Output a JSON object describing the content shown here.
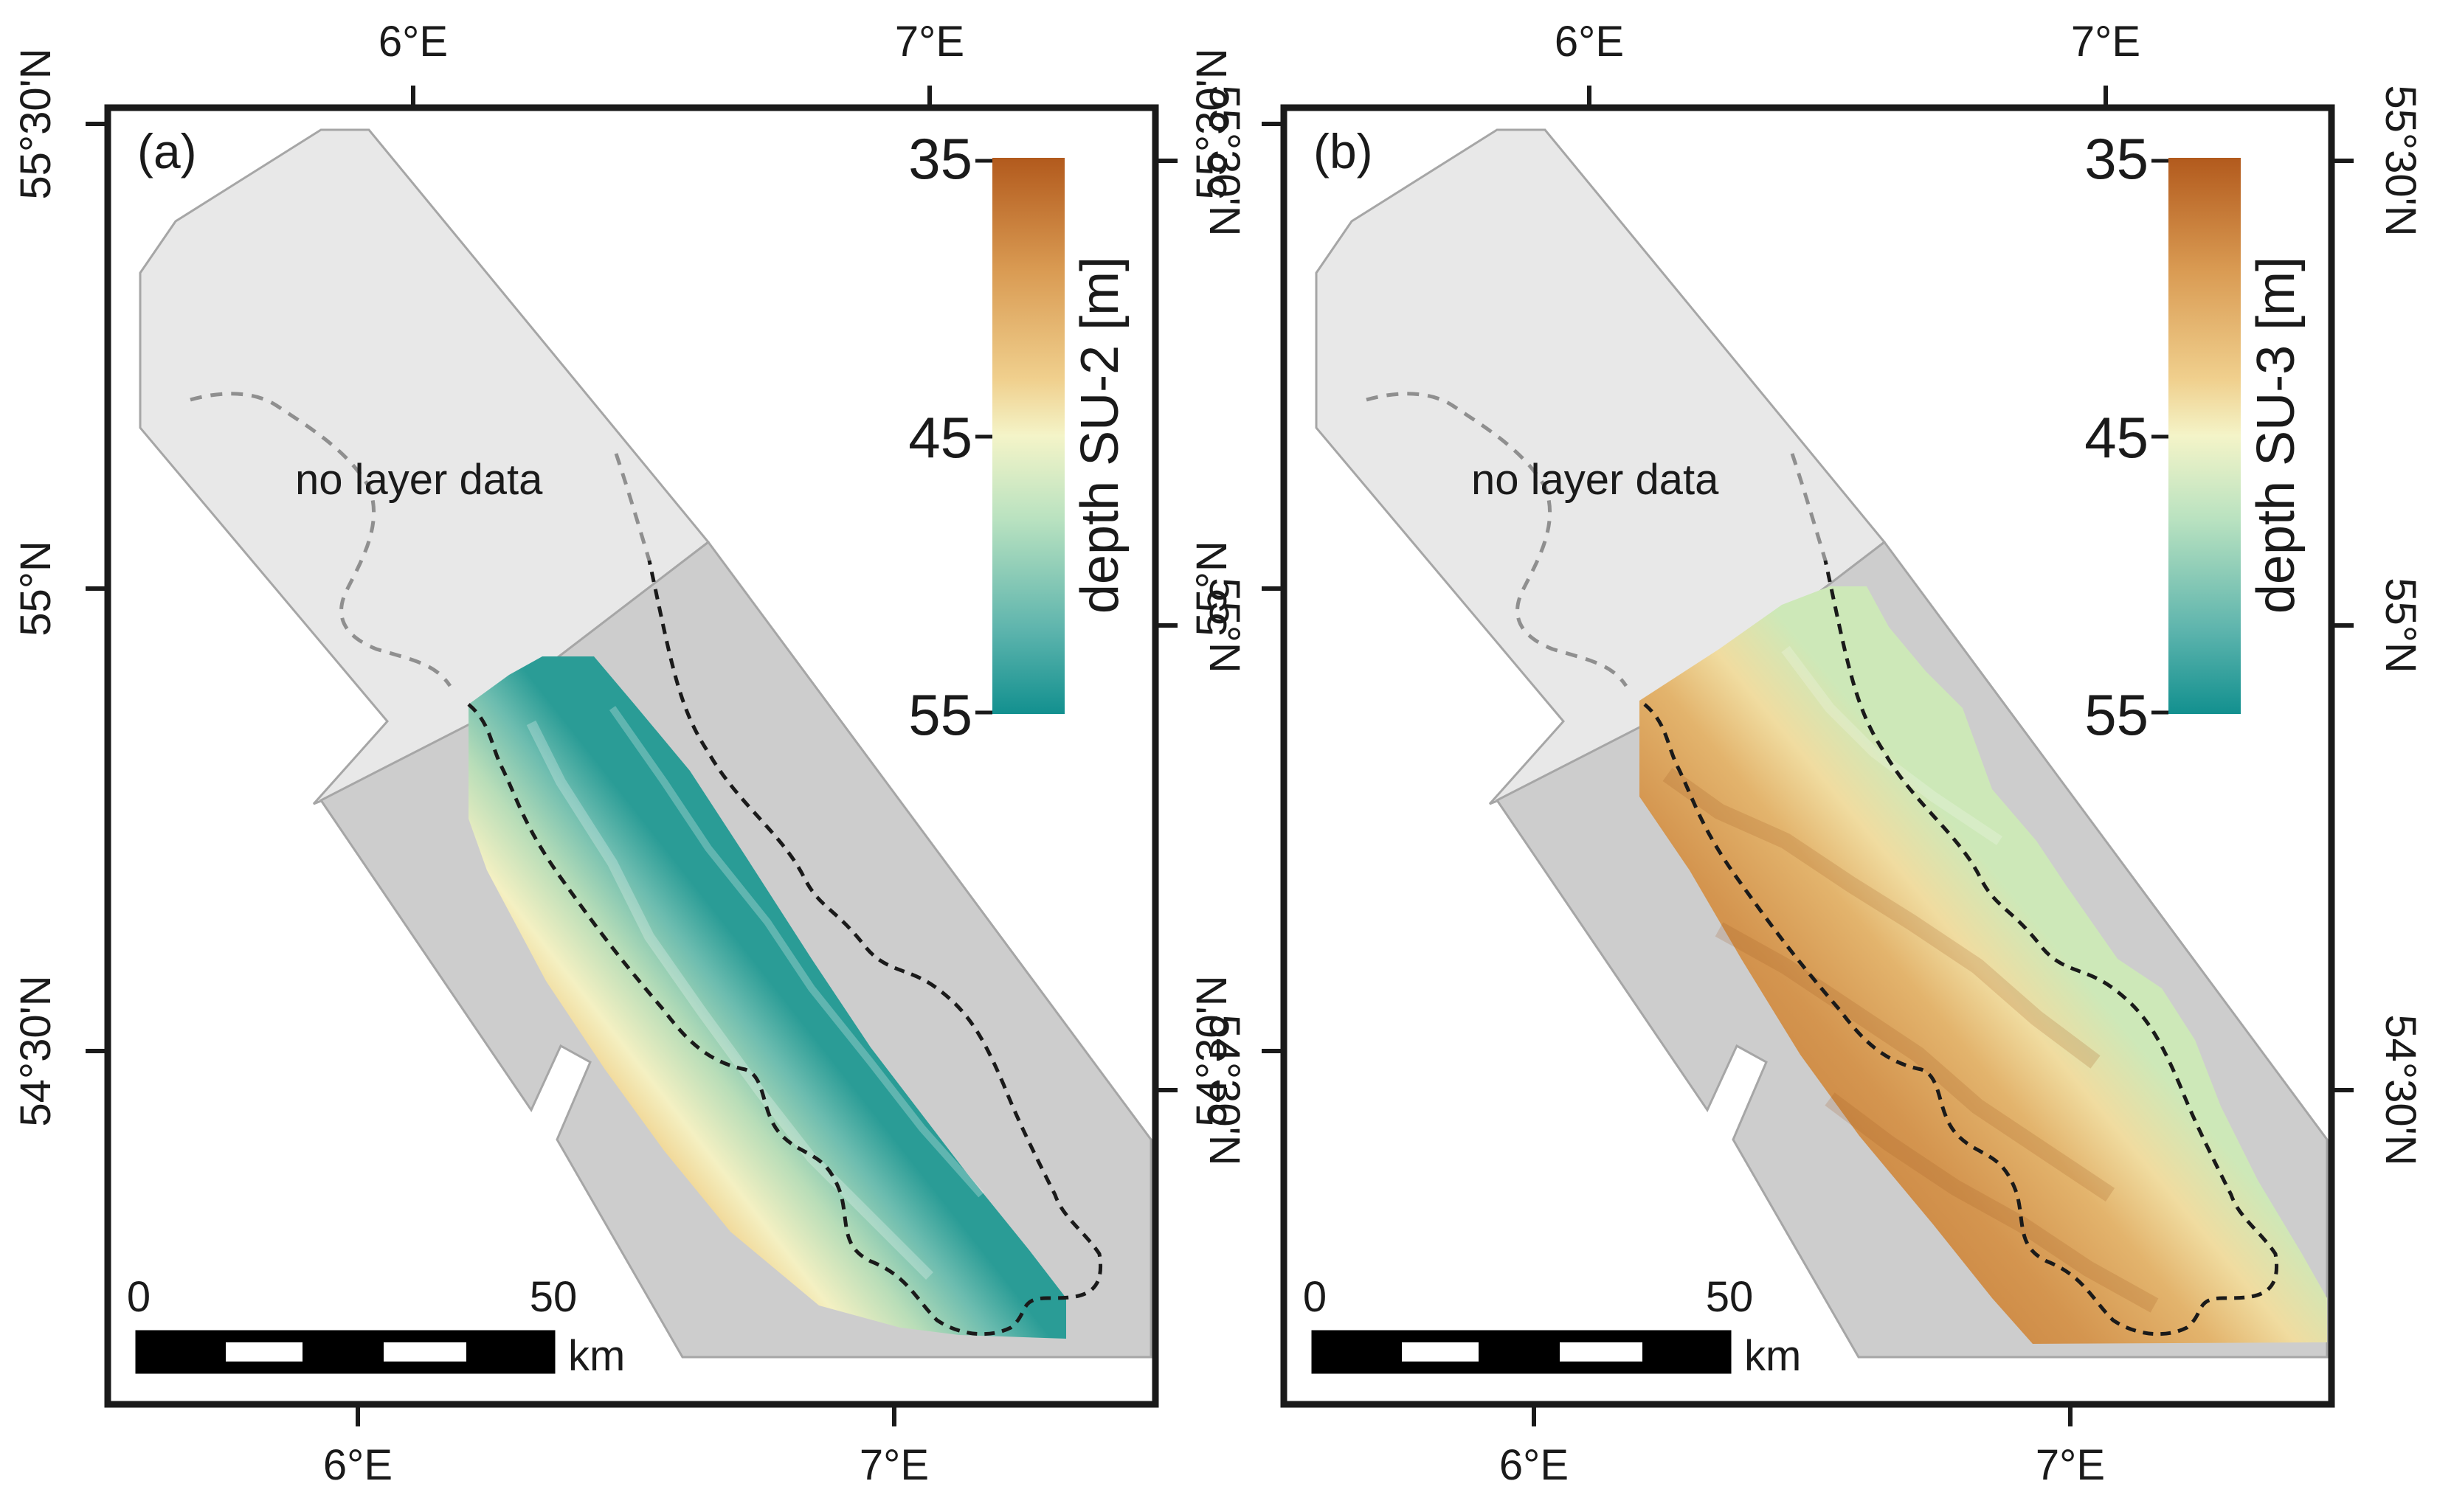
{
  "figure": {
    "panels": [
      {
        "id": "a",
        "label": "(a)",
        "annotation": "no layer data",
        "colorbar": {
          "title": "depth SU-2 [m]",
          "ticks": [
            "35",
            "45",
            "55"
          ],
          "min": 35,
          "max": 55
        },
        "top_lon_ticks": [
          "6°E",
          "7°E"
        ],
        "bottom_lon_ticks": [
          "6°E",
          "7°E"
        ],
        "left_lat_ticks": [
          "55°30'N",
          "55°N",
          "54°30'N"
        ],
        "right_lat_ticks": [
          "55°30'N",
          "55°N",
          "54°30'N"
        ],
        "scalebar": {
          "start": "0",
          "end": "50",
          "unit": "km"
        }
      },
      {
        "id": "b",
        "label": "(b)",
        "annotation": "no layer data",
        "colorbar": {
          "title": "depth SU-3 [m]",
          "ticks": [
            "35",
            "45",
            "55"
          ],
          "min": 35,
          "max": 55
        },
        "top_lon_ticks": [
          "6°E",
          "7°E"
        ],
        "bottom_lon_ticks": [
          "6°E",
          "7°E"
        ],
        "left_lat_ticks": [
          "55°30'N",
          "55°N",
          "54°30'N"
        ],
        "right_lat_ticks": [
          "55°30'N",
          "55°N",
          "54°30'N"
        ],
        "scalebar": {
          "start": "0",
          "end": "50",
          "unit": "km"
        }
      }
    ],
    "colors": {
      "no_data_area": "#e8e8e8",
      "survey_area": "#cdcdcd",
      "colormap": [
        "#b25a1d",
        "#d99a52",
        "#f0d08e",
        "#f4f4c8",
        "#b9e2c0",
        "#5db4ad",
        "#12908f"
      ]
    }
  }
}
